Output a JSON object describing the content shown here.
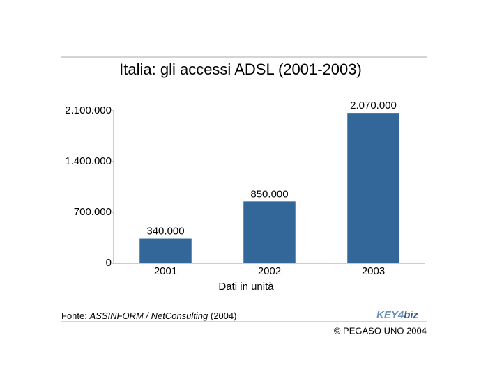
{
  "chart_data": {
    "type": "bar",
    "title": "Italia: gli accessi ADSL (2001-2003)",
    "categories": [
      "2001",
      "2002",
      "2003"
    ],
    "values": [
      340000,
      850000,
      2070000
    ],
    "value_labels": [
      "340.000",
      "850.000",
      "2.070.000"
    ],
    "color": "#336699",
    "x_label": "Dati in unità",
    "ylim": [
      0,
      2100000
    ],
    "yticks": [
      0,
      {
        "value": 700000,
        "label": "700.000"
      },
      {
        "value": 1400000,
        "label": "1.400.000"
      },
      {
        "value": 2100000,
        "label": "2.100.000"
      }
    ],
    "grid": false
  },
  "footer": {
    "source_prefix": "Fonte:",
    "source_name": "ASSINFORM / NetConsulting",
    "source_year": "(2004)",
    "logo_key": "KEY",
    "logo_num": "4",
    "logo_biz": "biz",
    "copyright": "© PEGASO UNO 2004"
  }
}
